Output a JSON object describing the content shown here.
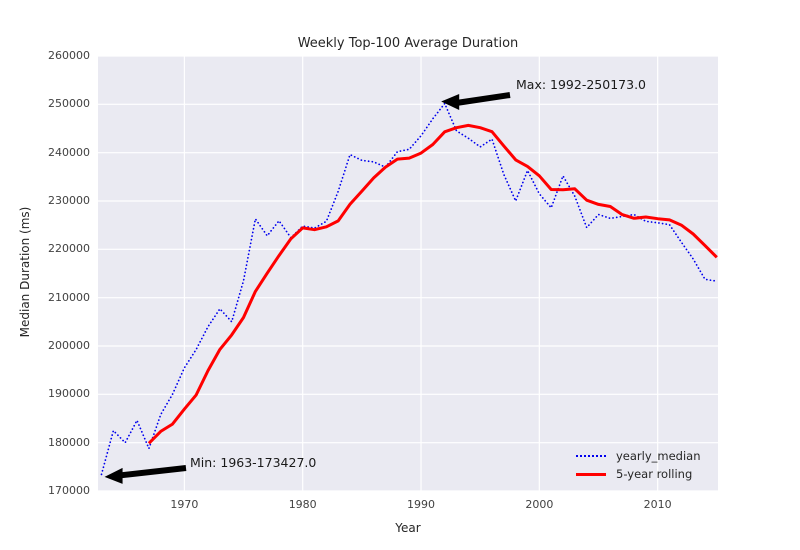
{
  "chart_data": {
    "type": "line",
    "title": "Weekly Top-100 Average Duration",
    "xlabel": "Year",
    "ylabel": "Median Duration (ms)",
    "xlim": [
      1962.7,
      2015.1
    ],
    "ylim": [
      170000,
      260000
    ],
    "xticks": [
      1970,
      1980,
      1990,
      2000,
      2010
    ],
    "yticks": [
      170000,
      180000,
      190000,
      200000,
      210000,
      220000,
      230000,
      240000,
      250000,
      260000
    ],
    "grid": true,
    "plot_background": "#EAEAF2",
    "grid_color": "#FFFFFF",
    "x": [
      1963,
      1964,
      1965,
      1966,
      1967,
      1968,
      1969,
      1970,
      1971,
      1972,
      1973,
      1974,
      1975,
      1976,
      1977,
      1978,
      1979,
      1980,
      1981,
      1982,
      1983,
      1984,
      1985,
      1986,
      1987,
      1988,
      1989,
      1990,
      1991,
      1992,
      1993,
      1994,
      1995,
      1996,
      1997,
      1998,
      1999,
      2000,
      2001,
      2002,
      2003,
      2004,
      2005,
      2006,
      2007,
      2008,
      2009,
      2010,
      2011,
      2012,
      2013,
      2014,
      2015
    ],
    "series": [
      {
        "name": "yearly_median",
        "color": "#0000EE",
        "style": "dotted",
        "values": [
          173427,
          182500,
          180000,
          184600,
          178800,
          185800,
          190000,
          195500,
          199300,
          204000,
          207700,
          205000,
          213500,
          226300,
          222800,
          225900,
          222400,
          224800,
          224400,
          225800,
          232000,
          239600,
          238400,
          238100,
          237000,
          240200,
          240700,
          243500,
          247000,
          250173,
          244500,
          243000,
          241200,
          242800,
          235500,
          230000,
          236300,
          231500,
          228600,
          235200,
          231000,
          224500,
          227200,
          226400,
          226800,
          227200,
          225800,
          225500,
          225100,
          221500,
          218000,
          213800,
          213400
        ]
      },
      {
        "name": "5-year rolling",
        "color": "#FF0000",
        "style": "solid",
        "values": [
          null,
          null,
          null,
          null,
          179865,
          182340,
          183840,
          186940,
          189880,
          194920,
          199300,
          202300,
          205900,
          211300,
          215060,
          218700,
          222180,
          224440,
          224060,
          224660,
          225880,
          229320,
          232040,
          234780,
          237020,
          238660,
          238880,
          239900,
          241680,
          244315,
          245175,
          245635,
          245175,
          244335,
          241400,
          238500,
          237160,
          235220,
          232380,
          232320,
          232520,
          230160,
          229300,
          228860,
          227180,
          226420,
          226680,
          226340,
          226080,
          225020,
          223180,
          220780,
          218360
        ]
      }
    ],
    "annotations": [
      {
        "label": "Max: 1992-250173.0",
        "year": 1992,
        "value": 250173.0
      },
      {
        "label": "Min: 1963-173427.0",
        "year": 1963,
        "value": 173427.0
      }
    ],
    "legend": {
      "position": "lower right",
      "entries": [
        "yearly_median",
        "5-year rolling"
      ]
    }
  }
}
